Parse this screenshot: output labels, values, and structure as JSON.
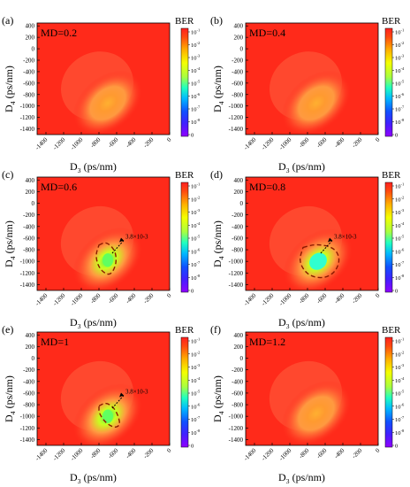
{
  "figure": {
    "colors": {
      "background": "#ff2a1a",
      "colormap": [
        "#f0ff00",
        "#e8ff10",
        "#c8ff30",
        "#80ff60",
        "#20ffd0",
        "#00c0ff",
        "#0060ff",
        "#2020ff",
        "#6010ff",
        "#a000ff"
      ],
      "contour": "#8a1a00",
      "arrow": "#000000"
    }
  },
  "chart_data": [
    {
      "type": "heatmap",
      "panel_label": "(a)",
      "title": "MD=0.2",
      "xlabel": "D3 (ps/nm)",
      "ylabel": "D4 (ps/nm)",
      "x_ticks": [
        "-1400",
        "-1200",
        "-1000",
        "-800",
        "-600",
        "-400",
        "-200",
        "0"
      ],
      "y_ticks": [
        "400",
        "200",
        "0",
        "-200",
        "-400",
        "-600",
        "-800",
        "-1000",
        "-1200",
        "-1400"
      ],
      "xlim": [
        -1500,
        0
      ],
      "ylim": [
        -1500,
        450
      ],
      "colorbar": {
        "label": "BER",
        "ticks": [
          "10-1",
          "10-2",
          "10-3",
          "10-4",
          "10-5",
          "10-6",
          "10-7",
          "10-8",
          "0"
        ]
      },
      "min_ber_center": {
        "d3": -700,
        "d4": -950
      },
      "min_level": 0.2,
      "annotation": null
    },
    {
      "type": "heatmap",
      "panel_label": "(b)",
      "title": "MD=0.4",
      "xlabel": "D3 (ps/nm)",
      "ylabel": "D4 (ps/nm)",
      "x_ticks": [
        "-1400",
        "-1200",
        "-1000",
        "-800",
        "-600",
        "-400",
        "-200",
        "0"
      ],
      "y_ticks": [
        "400",
        "200",
        "0",
        "-200",
        "-400",
        "-600",
        "-800",
        "-1000",
        "-1200",
        "-1400"
      ],
      "xlim": [
        -1500,
        0
      ],
      "ylim": [
        -1500,
        450
      ],
      "colorbar": {
        "label": "BER",
        "ticks": [
          "10-1",
          "10-2",
          "10-3",
          "10-4",
          "10-5",
          "10-6",
          "10-7",
          "10-8",
          "0"
        ]
      },
      "min_ber_center": {
        "d3": -700,
        "d4": -950
      },
      "min_level": 0.35,
      "annotation": null
    },
    {
      "type": "heatmap",
      "panel_label": "(c)",
      "title": "MD=0.6",
      "xlabel": "D3 (ps/nm)",
      "ylabel": "D4 (ps/nm)",
      "x_ticks": [
        "-1400",
        "-1200",
        "-1000",
        "-800",
        "-600",
        "-400",
        "-200",
        "0"
      ],
      "y_ticks": [
        "400",
        "200",
        "0",
        "-200",
        "-400",
        "-600",
        "-800",
        "-1000",
        "-1200",
        "-1400"
      ],
      "xlim": [
        -1500,
        0
      ],
      "ylim": [
        -1500,
        450
      ],
      "colorbar": {
        "label": "BER",
        "ticks": [
          "10-1",
          "10-2",
          "10-3",
          "10-4",
          "10-5",
          "10-6",
          "10-7",
          "10-8",
          "0"
        ]
      },
      "min_ber_center": {
        "d3": -700,
        "d4": -980
      },
      "min_level": 0.65,
      "annotation": {
        "text": "3.8×10-3",
        "contour_d3": [
          -800,
          -720,
          -620,
          -600,
          -640,
          -700,
          -800,
          -840
        ],
        "contour_d4": [
          -720,
          -660,
          -800,
          -1000,
          -1180,
          -1240,
          -1120,
          -900
        ]
      }
    },
    {
      "type": "heatmap",
      "panel_label": "(d)",
      "title": "MD=0.8",
      "xlabel": "D3 (ps/nm)",
      "ylabel": "D4 (ps/nm)",
      "x_ticks": [
        "-1400",
        "-1200",
        "-1000",
        "-800",
        "-600",
        "-400",
        "-200",
        "0"
      ],
      "y_ticks": [
        "400",
        "200",
        "0",
        "-200",
        "-400",
        "-600",
        "-800",
        "-1000",
        "-1200",
        "-1400"
      ],
      "xlim": [
        -1500,
        0
      ],
      "ylim": [
        -1500,
        450
      ],
      "colorbar": {
        "label": "BER",
        "ticks": [
          "10-1",
          "10-2",
          "10-3",
          "10-4",
          "10-5",
          "10-6",
          "10-7",
          "10-8",
          "0"
        ]
      },
      "min_ber_center": {
        "d3": -680,
        "d4": -1000
      },
      "min_level": 0.85,
      "annotation": {
        "text": "3.8×10-3",
        "contour_d3": [
          -850,
          -700,
          -500,
          -430,
          -480,
          -620,
          -800,
          -900
        ],
        "contour_d4": [
          -760,
          -700,
          -760,
          -950,
          -1180,
          -1300,
          -1240,
          -1000
        ]
      }
    },
    {
      "type": "heatmap",
      "panel_label": "(e)",
      "title": "MD=1",
      "xlabel": "D3 (ps/nm)",
      "ylabel": "D4 (ps/nm)",
      "x_ticks": [
        "-1400",
        "-1200",
        "-1000",
        "-800",
        "-600",
        "-400",
        "-200",
        "0"
      ],
      "y_ticks": [
        "400",
        "200",
        "0",
        "-200",
        "-400",
        "-600",
        "-800",
        "-1000",
        "-1200",
        "-1400"
      ],
      "xlim": [
        -1500,
        0
      ],
      "ylim": [
        -1500,
        450
      ],
      "colorbar": {
        "label": "BER",
        "ticks": [
          "10-1",
          "10-2",
          "10-3",
          "10-4",
          "10-5",
          "10-6",
          "10-7",
          "10-8",
          "0"
        ]
      },
      "min_ber_center": {
        "d3": -700,
        "d4": -1000
      },
      "min_level": 0.62,
      "annotation": {
        "text": "3.8×10-3",
        "contour_d3": [
          -800,
          -720,
          -630,
          -580,
          -560,
          -620,
          -720,
          -800
        ],
        "contour_d4": [
          -820,
          -760,
          -850,
          -1000,
          -1150,
          -1200,
          -1120,
          -950
        ]
      }
    },
    {
      "type": "heatmap",
      "panel_label": "(f)",
      "title": "MD=1.2",
      "xlabel": "D3 (ps/nm)",
      "ylabel": "D4 (ps/nm)",
      "x_ticks": [
        "-1400",
        "-1200",
        "-1000",
        "-800",
        "-600",
        "-400",
        "-200",
        "0"
      ],
      "y_ticks": [
        "400",
        "200",
        "0",
        "-200",
        "-400",
        "-600",
        "-800",
        "-1000",
        "-1200",
        "-1400"
      ],
      "xlim": [
        -1500,
        0
      ],
      "ylim": [
        -1500,
        450
      ],
      "colorbar": {
        "label": "BER",
        "ticks": [
          "10-1",
          "10-2",
          "10-3",
          "10-4",
          "10-5",
          "10-6",
          "10-7",
          "10-8",
          "0"
        ]
      },
      "min_ber_center": {
        "d3": -700,
        "d4": -950
      },
      "min_level": 0.25,
      "annotation": null
    }
  ]
}
